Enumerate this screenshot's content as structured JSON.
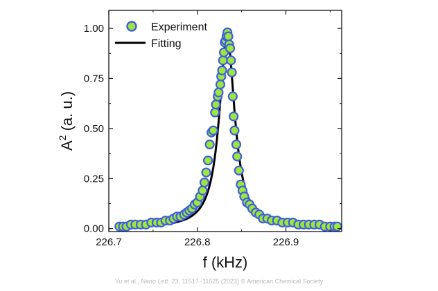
{
  "chart_data": {
    "type": "scatter",
    "xlabel": "f (kHz)",
    "ylabel_base": "A",
    "ylabel_sup": "2",
    "ylabel_rest": " (a. u.)",
    "xlim": [
      226.7,
      226.963
    ],
    "ylim": [
      -0.015,
      1.09
    ],
    "xticks": [
      226.7,
      226.8,
      226.9
    ],
    "xtick_labels": [
      "226.7",
      "226.8",
      "226.9"
    ],
    "yticks": [
      0.0,
      0.25,
      0.5,
      0.75,
      1.0
    ],
    "ytick_labels": [
      "0.00",
      "0.25",
      "0.50",
      "0.75",
      "1.00"
    ],
    "legend_placement": "top-left",
    "series": [
      {
        "name": "Experiment",
        "kind": "markers",
        "marker_fill": "#9ee63a",
        "marker_edge": "#3f5fe0",
        "x": [
          226.712,
          226.716,
          226.72,
          226.725,
          226.73,
          226.736,
          226.742,
          226.748,
          226.754,
          226.759,
          226.764,
          226.769,
          226.773,
          226.777,
          226.781,
          226.785,
          226.788,
          226.791,
          226.794,
          226.797,
          226.8,
          226.803,
          226.806,
          226.808,
          226.81,
          226.812,
          226.814,
          226.816,
          226.818,
          226.82,
          226.821,
          226.823,
          226.824,
          226.826,
          226.827,
          226.828,
          226.829,
          226.83,
          226.831,
          226.832,
          226.833,
          226.834,
          226.835,
          226.836,
          226.837,
          226.838,
          226.839,
          226.84,
          226.841,
          226.842,
          226.844,
          226.845,
          226.847,
          226.849,
          226.851,
          226.853,
          226.856,
          226.859,
          226.862,
          226.866,
          226.87,
          226.874,
          226.879,
          226.884,
          226.89,
          226.896,
          226.902,
          226.908,
          226.914,
          226.92,
          226.926,
          226.932,
          226.938,
          226.944,
          226.95,
          226.955,
          226.958
        ],
        "y": [
          0.01,
          0.01,
          0.01,
          0.02,
          0.02,
          0.02,
          0.02,
          0.03,
          0.03,
          0.03,
          0.04,
          0.04,
          0.05,
          0.06,
          0.06,
          0.07,
          0.08,
          0.09,
          0.1,
          0.12,
          0.13,
          0.16,
          0.19,
          0.23,
          0.28,
          0.34,
          0.42,
          0.48,
          0.49,
          0.58,
          0.62,
          0.66,
          0.68,
          0.72,
          0.76,
          0.79,
          0.84,
          0.88,
          0.93,
          0.94,
          0.96,
          0.98,
          0.96,
          0.92,
          0.9,
          0.84,
          0.78,
          0.66,
          0.56,
          0.49,
          0.42,
          0.36,
          0.29,
          0.22,
          0.19,
          0.16,
          0.13,
          0.12,
          0.1,
          0.08,
          0.07,
          0.05,
          0.05,
          0.04,
          0.04,
          0.03,
          0.03,
          0.03,
          0.02,
          0.02,
          0.02,
          0.02,
          0.02,
          0.01,
          0.01,
          0.01,
          0.01
        ]
      },
      {
        "name": "Fitting",
        "kind": "line",
        "color": "#000000",
        "model": "lorentzian",
        "x0": 226.8335,
        "hwhm": 0.0105,
        "amplitude": 0.97,
        "x_range": [
          226.71,
          226.96
        ]
      }
    ]
  },
  "credit": {
    "authors": "Yu et al., ",
    "journal": "Nano Lett.",
    "rest": " 23, 11517−11525 (2023) © American Chemical Society"
  }
}
